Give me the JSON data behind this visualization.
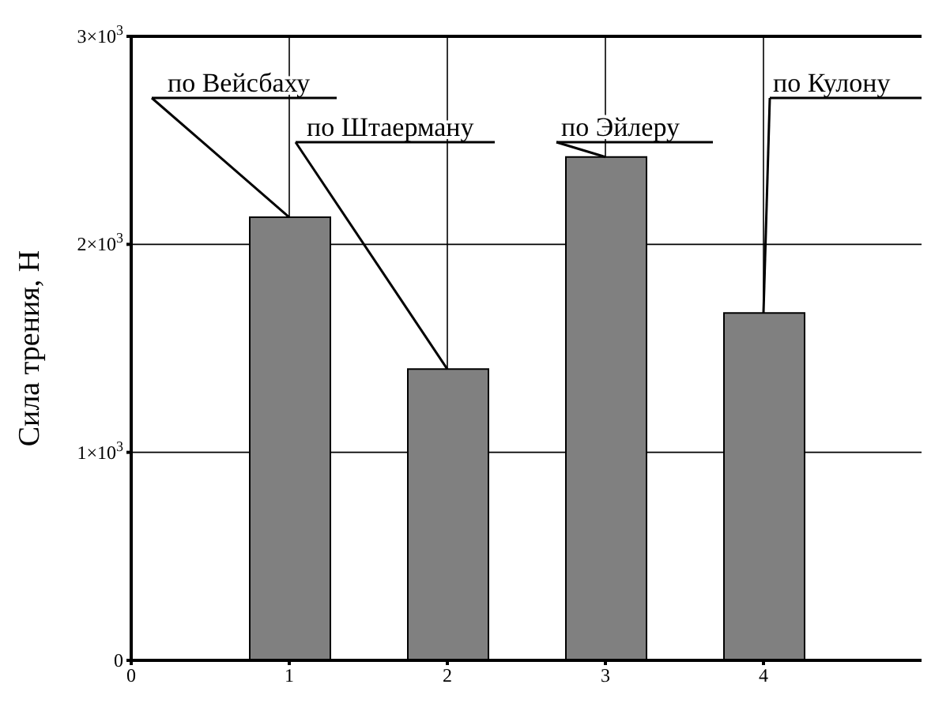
{
  "chart_data": {
    "type": "bar",
    "ylabel": "Сила трения, Н",
    "x": [
      1,
      2,
      3,
      4
    ],
    "values": [
      2130,
      1400,
      2420,
      1670
    ],
    "color": "#808080",
    "xlim": [
      0,
      5
    ],
    "xticks": [
      0,
      1,
      2,
      3,
      4
    ],
    "ylim": [
      0,
      3000
    ],
    "yticks": [
      {
        "value": 0,
        "label": "0"
      },
      {
        "value": 1000,
        "label": "1×10$^{3}$"
      },
      {
        "value": 2000,
        "label": "2×10$^{3}$"
      },
      {
        "value": 3000,
        "label": "3×10$^{3}$"
      }
    ],
    "grid": true,
    "annotations": [
      {
        "text": "по Вейсбаху",
        "x": 1,
        "y": 2130
      },
      {
        "text": "по Штаерману",
        "x": 2,
        "y": 1400
      },
      {
        "text": "по Эйлеру",
        "x": 3,
        "y": 2420
      },
      {
        "text": "по Кулону",
        "x": 4,
        "y": 1670
      }
    ]
  }
}
